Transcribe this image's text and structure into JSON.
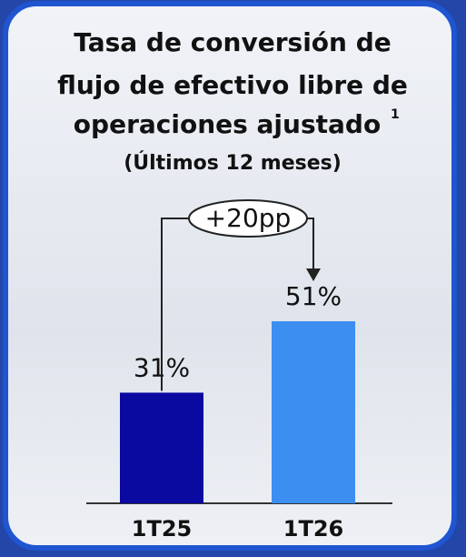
{
  "chart_data": {
    "type": "bar",
    "title": [
      "Tasa de conversión de",
      "flujo de efectivo libre de",
      "operaciones ajustado"
    ],
    "title_footnote": "1",
    "subtitle": "(Últimos 12 meses)",
    "categories": [
      "1T25",
      "1T26"
    ],
    "values": [
      31,
      51
    ],
    "value_labels": [
      "31%",
      "51%"
    ],
    "colors": [
      "#0a0aa0",
      "#3c8ef0"
    ],
    "annotation": "+20pp"
  }
}
